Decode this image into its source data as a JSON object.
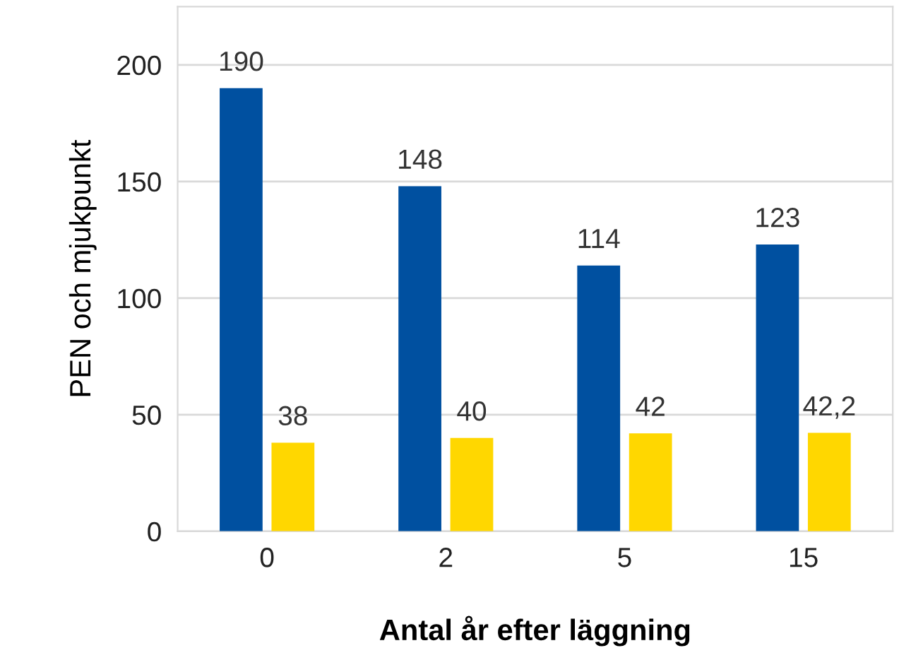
{
  "chart_data": {
    "type": "bar",
    "xlabel": "Antal år efter läggning",
    "ylabel": "PEN och mjukpunkt",
    "categories": [
      "0",
      "2",
      "5",
      "15"
    ],
    "series": [
      {
        "color": "#0050a0",
        "values": [
          190,
          148,
          114,
          123
        ],
        "value_labels": [
          "190",
          "148",
          "114",
          "123"
        ]
      },
      {
        "color": "#ffd700",
        "values": [
          38,
          40,
          42,
          42.2
        ],
        "value_labels": [
          "38",
          "40",
          "42",
          "42,2"
        ]
      }
    ],
    "ylim": [
      0,
      225
    ],
    "yticks": [
      0,
      50,
      100,
      150,
      200
    ],
    "grid": "y"
  }
}
